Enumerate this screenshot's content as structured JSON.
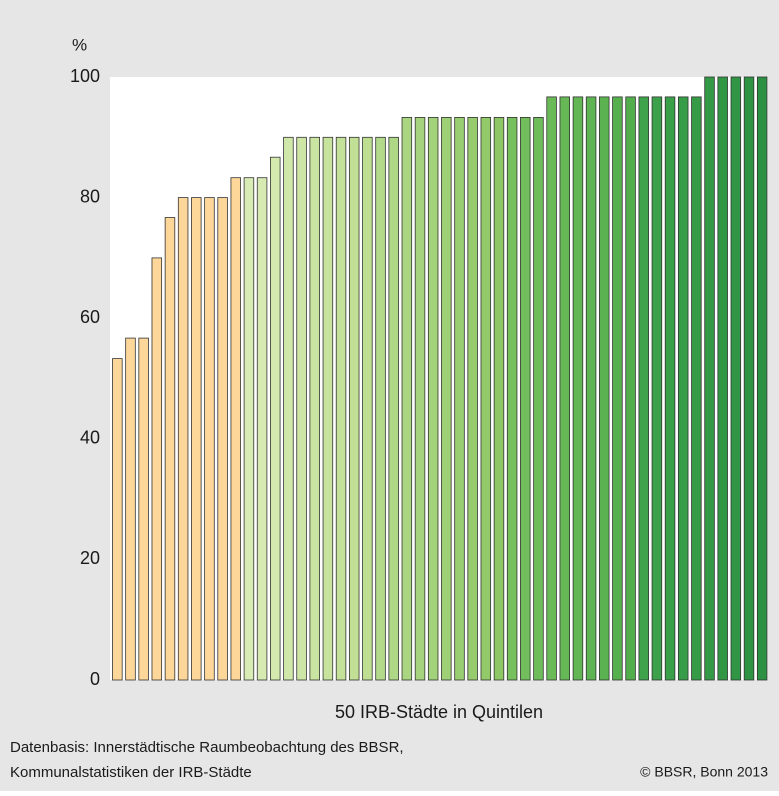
{
  "chart_data": {
    "type": "bar",
    "y_unit_label": "%",
    "x_label": "50 IRB-Städte in Quintilen",
    "notes": [
      "Datenbasis: Innerstädtische Raumbeobachtung des BBSR,",
      "Kommunalstatistiken der IRB-Städte"
    ],
    "copyright": "© BBSR, Bonn 2013",
    "values": [
      53.3,
      56.7,
      56.7,
      70,
      76.7,
      80,
      80,
      80,
      80,
      83.3,
      83.3,
      83.3,
      86.7,
      90,
      90,
      90,
      90,
      90,
      90,
      90,
      90,
      90,
      93.3,
      93.3,
      93.3,
      93.3,
      93.3,
      93.3,
      93.3,
      93.3,
      93.3,
      93.3,
      93.3,
      96.7,
      96.7,
      96.7,
      96.7,
      96.7,
      96.7,
      96.7,
      96.7,
      96.7,
      96.7,
      96.7,
      96.7,
      100,
      100,
      100,
      100,
      100
    ],
    "colors": [
      "#fdd799",
      "#fdd799",
      "#fdd799",
      "#fdd799",
      "#fdd799",
      "#fdd799",
      "#fdd799",
      "#fdd799",
      "#fdd799",
      "#fdd799",
      "#d9ecb6",
      "#d6eab2",
      "#d3e9ae",
      "#d0e7aa",
      "#cde6a6",
      "#cae4a2",
      "#c7e39e",
      "#c4e19a",
      "#c1e096",
      "#bedf92",
      "#b2da8a",
      "#aed886",
      "#aad682",
      "#a6d47e",
      "#a2d27a",
      "#9ed076",
      "#9ace72",
      "#96cc6e",
      "#92ca6a",
      "#8ec866",
      "#76c05e",
      "#72be5c",
      "#6ebc5a",
      "#6aba58",
      "#66b856",
      "#62b654",
      "#5eb452",
      "#5ab250",
      "#56b04e",
      "#52ae4c",
      "#3ea34b",
      "#3ca14a",
      "#3a9f49",
      "#389d48",
      "#369b47",
      "#349946",
      "#329745",
      "#309544",
      "#2e9343",
      "#2c9142"
    ],
    "ylim": [
      0,
      100
    ],
    "yticks": [
      0,
      20,
      40,
      60,
      80,
      100
    ],
    "grid": false,
    "background": "#e6e6e6",
    "plot_background": "#ffffff"
  }
}
